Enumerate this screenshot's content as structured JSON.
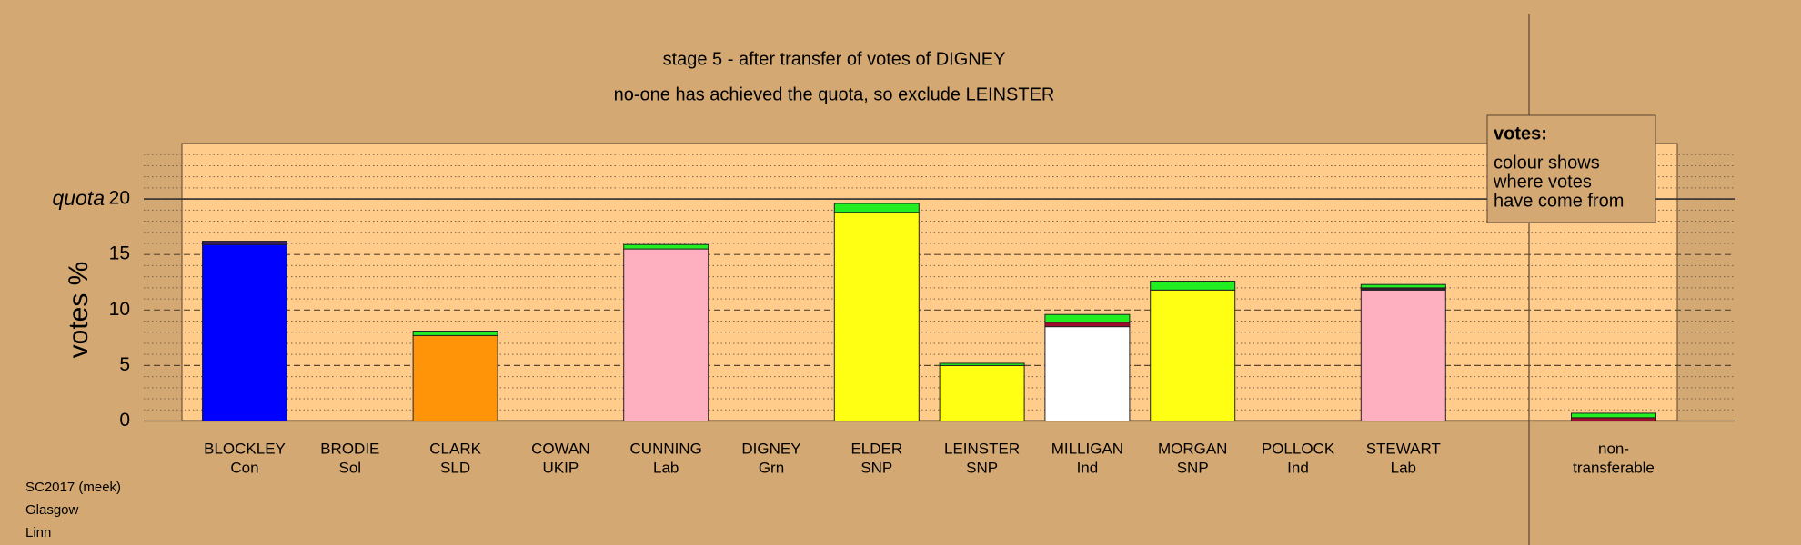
{
  "chart_data": {
    "type": "stacked_bar",
    "title": "stage 5 - after transfer of votes of DIGNEY",
    "subtitle": "no-one has achieved the quota, so exclude LEINSTER",
    "y_label": "votes %",
    "categories": [
      [
        "BLOCKLEY",
        "Con"
      ],
      [
        "BRODIE",
        "Sol"
      ],
      [
        "CLARK",
        "SLD"
      ],
      [
        "COWAN",
        "UKIP"
      ],
      [
        "CUNNING",
        "Lab"
      ],
      [
        "DIGNEY",
        "Grn"
      ],
      [
        "ELDER",
        "SNP"
      ],
      [
        "LEINSTER",
        "SNP"
      ],
      [
        "MILLIGAN",
        "Ind"
      ],
      [
        "MORGAN",
        "SNP"
      ],
      [
        "POLLOCK",
        "Ind"
      ],
      [
        "STEWART",
        "Lab"
      ],
      [
        "non-",
        "transferable"
      ]
    ],
    "series": [
      {
        "colors": [
          "#0000ff",
          "#0000ff",
          "#ff9408",
          "#ff9408",
          "#ffb0c0",
          "#ffb0c0",
          "#ffff14",
          "#ffff14",
          "#ffffff",
          "#ffff14",
          "#ffffff",
          "#ffb0c0",
          "#ffffff"
        ],
        "values": [
          15.9,
          0,
          7.7,
          0,
          15.5,
          0,
          18.8,
          5.0,
          8.5,
          11.8,
          0,
          11.8,
          0
        ]
      },
      {
        "color": "#3c1a6e",
        "values": [
          0.3,
          0,
          0,
          0,
          0,
          0,
          0,
          0,
          0,
          0,
          0,
          0.1,
          0
        ]
      },
      {
        "color": "#9b0d2a",
        "values": [
          0,
          0,
          0,
          0,
          0,
          0,
          0,
          0,
          0.4,
          0,
          0,
          0.1,
          0.3
        ]
      },
      {
        "color": "#22ee22",
        "values": [
          0,
          0,
          0.4,
          0,
          0.4,
          0,
          0.8,
          0.2,
          0.7,
          0.8,
          0,
          0.3,
          0.4
        ]
      }
    ],
    "ylim": [
      0,
      25
    ],
    "yticks": [
      0,
      5,
      10,
      15,
      20
    ],
    "minor_yticks": [
      1,
      2,
      3,
      4,
      6,
      7,
      8,
      9,
      11,
      12,
      13,
      14,
      16,
      17,
      18,
      19,
      21,
      22,
      23,
      24
    ],
    "quota": {
      "label": "quota",
      "value": 20
    },
    "note": {
      "title": "votes:",
      "lines": [
        "colour shows",
        "where votes",
        "have come from"
      ]
    },
    "footer": [
      "SC2017 (meek)",
      "Glasgow",
      "Linn"
    ]
  }
}
